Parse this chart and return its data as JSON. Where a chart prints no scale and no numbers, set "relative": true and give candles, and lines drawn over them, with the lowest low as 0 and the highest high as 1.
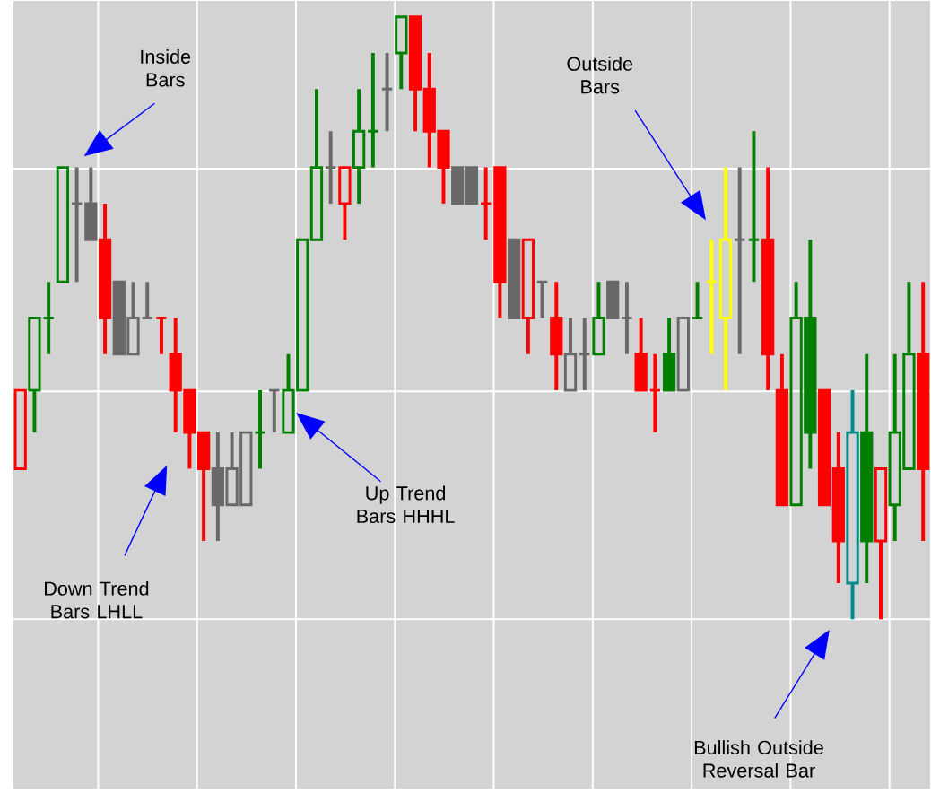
{
  "chart_data": {
    "type": "candlestick",
    "relative": true,
    "grid": true,
    "categories": [
      null,
      null,
      null,
      null,
      null,
      null,
      null,
      null,
      null,
      null,
      null,
      null,
      null,
      null,
      null,
      null,
      null,
      null,
      null,
      null,
      null,
      null,
      null,
      null,
      null,
      null,
      null,
      null,
      null,
      null,
      null,
      null,
      null,
      null,
      null,
      null,
      null,
      null,
      null,
      null,
      null,
      null,
      null,
      null,
      null,
      null,
      null,
      null,
      null,
      null,
      null,
      null,
      null,
      null,
      null,
      null,
      null,
      null,
      null,
      null,
      null,
      null,
      null,
      null,
      null
    ],
    "ohlc": [
      [
        0.25,
        0.38,
        0.25,
        0.38
      ],
      [
        0.38,
        0.5,
        0.31,
        0.5
      ],
      [
        0.5,
        0.56,
        0.44,
        0.5
      ],
      [
        0.56,
        0.75,
        0.56,
        0.75
      ],
      [
        0.69,
        0.75,
        0.56,
        0.69
      ],
      [
        0.69,
        0.75,
        0.63,
        0.63
      ],
      [
        0.63,
        0.69,
        0.44,
        0.5
      ],
      [
        0.56,
        0.56,
        0.44,
        0.44
      ],
      [
        0.44,
        0.56,
        0.44,
        0.5
      ],
      [
        0.5,
        0.56,
        0.5,
        0.5
      ],
      [
        0.5,
        0.5,
        0.44,
        0.5
      ],
      [
        0.44,
        0.5,
        0.31,
        0.38
      ],
      [
        0.38,
        0.38,
        0.25,
        0.31
      ],
      [
        0.31,
        0.31,
        0.13,
        0.25
      ],
      [
        0.25,
        0.31,
        0.13,
        0.19
      ],
      [
        0.19,
        0.31,
        0.19,
        0.25
      ],
      [
        0.19,
        0.31,
        0.19,
        0.31
      ],
      [
        0.31,
        0.38,
        0.25,
        0.31
      ],
      [
        0.38,
        0.38,
        0.31,
        0.38
      ],
      [
        0.31,
        0.44,
        0.31,
        0.38
      ],
      [
        0.38,
        0.63,
        0.38,
        0.63
      ],
      [
        0.63,
        0.88,
        0.63,
        0.75
      ],
      [
        0.75,
        0.81,
        0.69,
        0.75
      ],
      [
        0.69,
        0.75,
        0.63,
        0.75
      ],
      [
        0.75,
        0.88,
        0.69,
        0.81
      ],
      [
        0.81,
        0.94,
        0.75,
        0.81
      ],
      [
        0.88,
        0.94,
        0.81,
        0.88
      ],
      [
        0.94,
        1,
        0.88,
        1
      ],
      [
        1,
        1,
        0.81,
        0.88
      ],
      [
        0.88,
        0.94,
        0.75,
        0.81
      ],
      [
        0.81,
        0.81,
        0.69,
        0.75
      ],
      [
        0.75,
        0.75,
        0.69,
        0.69
      ],
      [
        0.75,
        0.75,
        0.69,
        0.69
      ],
      [
        0.69,
        0.75,
        0.63,
        0.69
      ],
      [
        0.75,
        0.75,
        0.5,
        0.56
      ],
      [
        0.63,
        0.63,
        0.5,
        0.5
      ],
      [
        0.5,
        0.63,
        0.44,
        0.63
      ],
      [
        0.56,
        0.56,
        0.5,
        0.56
      ],
      [
        0.5,
        0.56,
        0.38,
        0.44
      ],
      [
        0.38,
        0.5,
        0.38,
        0.44
      ],
      [
        0.44,
        0.5,
        0.38,
        0.44
      ],
      [
        0.44,
        0.56,
        0.44,
        0.5
      ],
      [
        0.56,
        0.56,
        0.5,
        0.5
      ],
      [
        0.5,
        0.56,
        0.44,
        0.5
      ],
      [
        0.44,
        0.5,
        0.38,
        0.38
      ],
      [
        0.38,
        0.44,
        0.31,
        0.38
      ],
      [
        0.44,
        0.5,
        0.38,
        0.38
      ],
      [
        0.38,
        0.5,
        0.38,
        0.5
      ],
      [
        0.5,
        0.56,
        0.5,
        0.5
      ],
      [
        0.56,
        0.63,
        0.44,
        0.56
      ],
      [
        0.5,
        0.75,
        0.38,
        0.63
      ],
      [
        0.63,
        0.75,
        0.44,
        0.63
      ],
      [
        0.63,
        0.81,
        0.56,
        0.63
      ],
      [
        0.63,
        0.75,
        0.38,
        0.44
      ],
      [
        0.38,
        0.44,
        0.19,
        0.19
      ],
      [
        0.19,
        0.56,
        0.19,
        0.5
      ],
      [
        0.5,
        0.63,
        0.25,
        0.31
      ],
      [
        0.38,
        0.38,
        0.19,
        0.19
      ],
      [
        0.25,
        0.31,
        0.06,
        0.13
      ],
      [
        0.06,
        0.38,
        0,
        0.31
      ],
      [
        0.31,
        0.44,
        0.06,
        0.13
      ],
      [
        0.13,
        0.25,
        0,
        0.25
      ],
      [
        0.19,
        0.44,
        0.13,
        0.31
      ],
      [
        0.25,
        0.56,
        0.25,
        0.44
      ],
      [
        0.44,
        0.56,
        0.13,
        0.25
      ]
    ],
    "colors": [
      "#ff0000",
      "#008000",
      "#008000",
      "#008000",
      "#696969",
      "#696969",
      "#ff0000",
      "#696969",
      "#696969",
      "#696969",
      "#ff0000",
      "#ff0000",
      "#ff0000",
      "#ff0000",
      "#696969",
      "#696969",
      "#696969",
      "#008000",
      "#696969",
      "#008000",
      "#008000",
      "#008000",
      "#696969",
      "#ff0000",
      "#008000",
      "#008000",
      "#696969",
      "#008000",
      "#ff0000",
      "#ff0000",
      "#ff0000",
      "#696969",
      "#696969",
      "#ff0000",
      "#ff0000",
      "#696969",
      "#ff0000",
      "#696969",
      "#ff0000",
      "#696969",
      "#696969",
      "#008000",
      "#696969",
      "#696969",
      "#ff0000",
      "#ff0000",
      "#008000",
      "#696969",
      "#008000",
      "#ffff00",
      "#ffff00",
      "#696969",
      "#008000",
      "#ff0000",
      "#ff0000",
      "#008000",
      "#008000",
      "#ff0000",
      "#ff0000",
      "#008b8b",
      "#008000",
      "#ff0000",
      "#008000",
      "#008000",
      "#ff0000"
    ],
    "annotations": [
      "Inside Bars",
      "Outside Bars",
      "Down Trend Bars LHLL",
      "Up Trend Bars HHHL",
      "Bullish Outside Reversal Bar"
    ]
  }
}
